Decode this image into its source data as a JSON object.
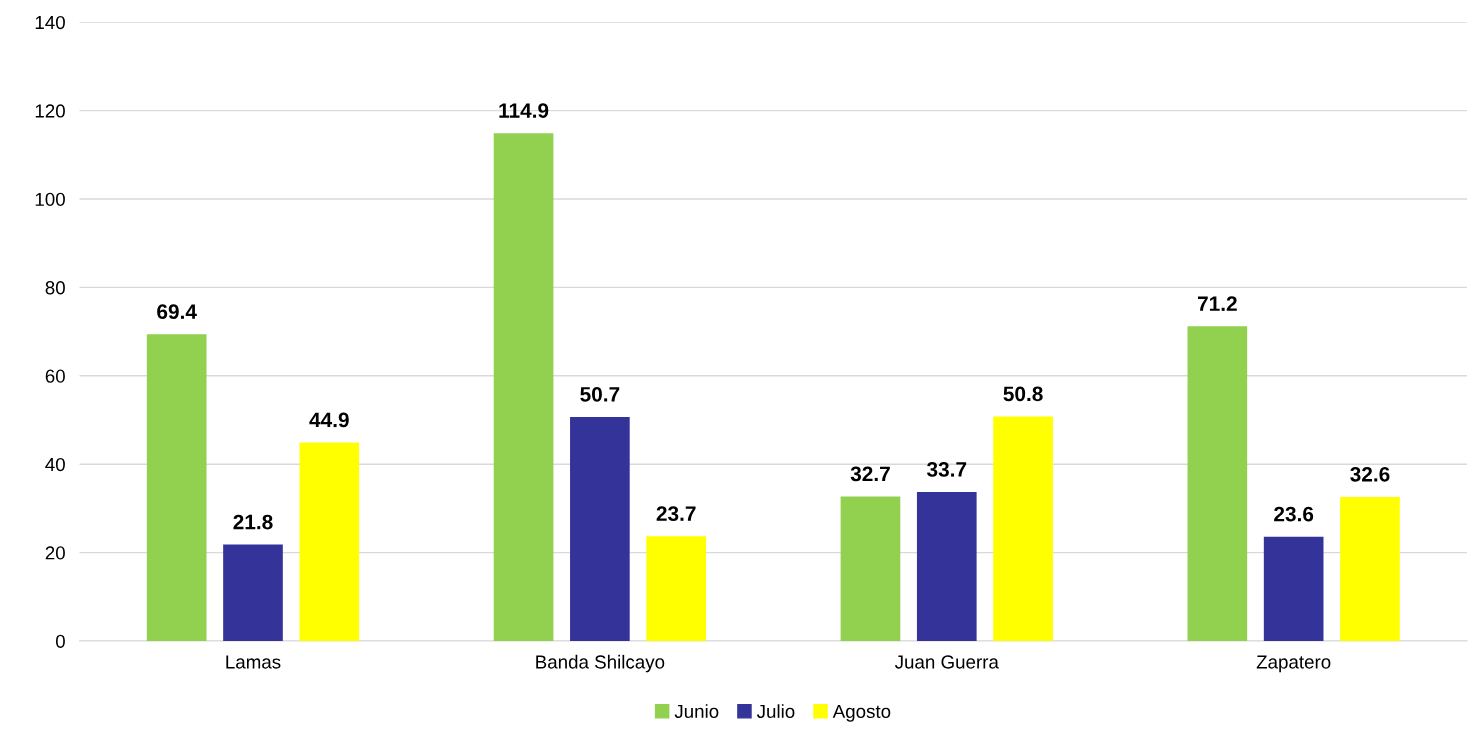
{
  "chart_data": {
    "type": "bar",
    "categories": [
      "Lamas",
      "Banda Shilcayo",
      "Juan Guerra",
      "Zapatero"
    ],
    "series": [
      {
        "name": "Junio",
        "color": "#92d050",
        "values": [
          69.4,
          114.9,
          32.7,
          71.2
        ]
      },
      {
        "name": "Julio",
        "color": "#333399",
        "values": [
          21.8,
          50.7,
          33.7,
          23.6
        ]
      },
      {
        "name": "Agosto",
        "color": "#ffff00",
        "values": [
          44.9,
          23.7,
          50.8,
          32.6
        ]
      }
    ],
    "ylim": [
      0,
      140
    ],
    "yticks": [
      0,
      20,
      40,
      60,
      80,
      100,
      120,
      140
    ],
    "grid": "y",
    "legend": "bottom",
    "data_labels": true
  }
}
